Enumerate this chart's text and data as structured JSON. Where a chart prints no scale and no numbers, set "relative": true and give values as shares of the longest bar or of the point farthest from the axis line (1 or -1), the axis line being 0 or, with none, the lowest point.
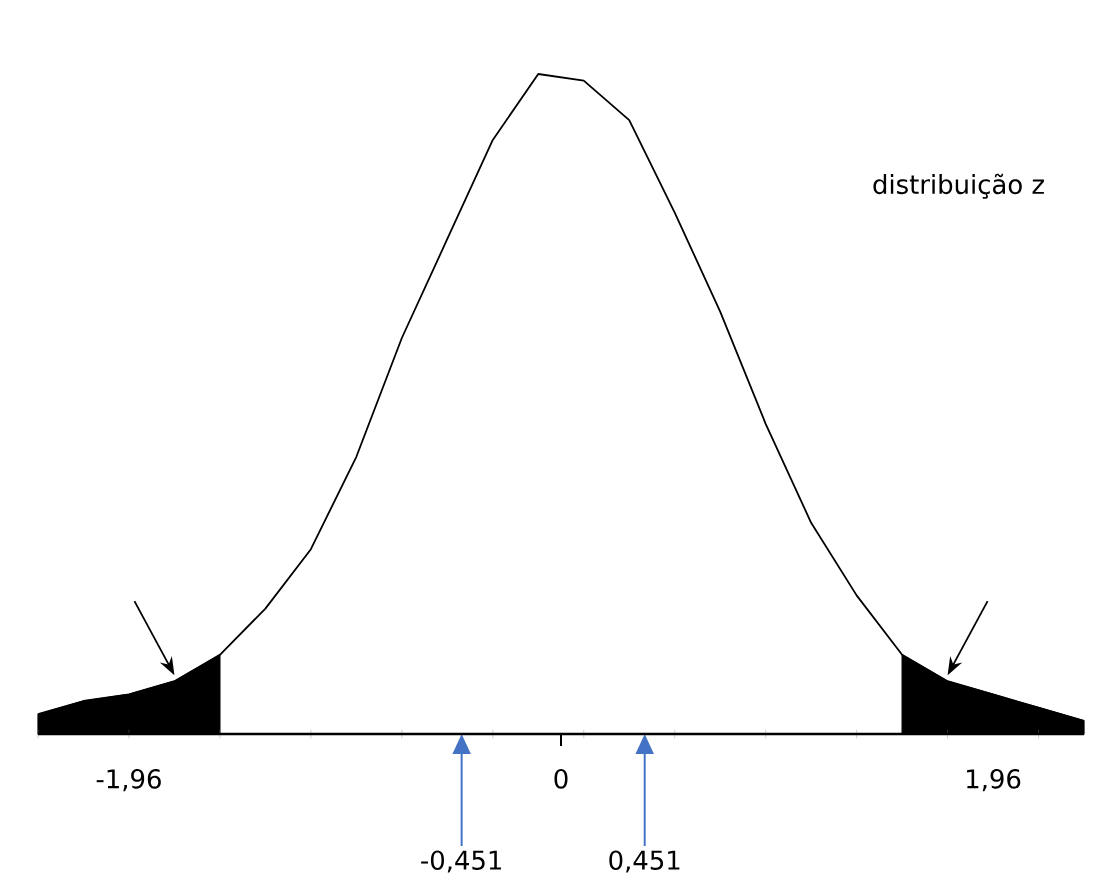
{
  "chart_data": {
    "type": "line",
    "relative": true,
    "categories": [
      null,
      null,
      null,
      null,
      null,
      null,
      null,
      null,
      null,
      null,
      null,
      null,
      null,
      null,
      null,
      null,
      null,
      null,
      null,
      null,
      null,
      null,
      null,
      null
    ],
    "series": [
      {
        "color": "#000000",
        "values": [
          0.03,
          0.05,
          0.06,
          0.08,
          0.12,
          0.19,
          0.28,
          0.42,
          0.6,
          0.75,
          0.9,
          1,
          0.99,
          0.93,
          0.79,
          0.64,
          0.47,
          0.32,
          0.21,
          0.12,
          0.08,
          0.06,
          0.04,
          0.02
        ]
      },
      {
        "type": "area",
        "color": "#000000",
        "values": [
          0.03,
          0.05,
          0.06,
          0.08,
          0.12,
          null,
          null,
          null,
          null,
          null,
          null,
          null,
          null,
          null,
          null,
          null,
          null,
          null,
          null,
          null,
          null,
          null,
          null,
          null
        ]
      },
      {
        "type": "area",
        "color": "#000000",
        "values": [
          null,
          null,
          null,
          null,
          null,
          null,
          null,
          null,
          null,
          null,
          null,
          null,
          null,
          null,
          null,
          null,
          null,
          null,
          null,
          0.12,
          0.08,
          0.06,
          0.04,
          0.02
        ]
      }
    ],
    "annotations": [
      "distribuição z",
      "-1,96",
      "1,96",
      "0",
      "-0,451",
      "0,451"
    ]
  }
}
